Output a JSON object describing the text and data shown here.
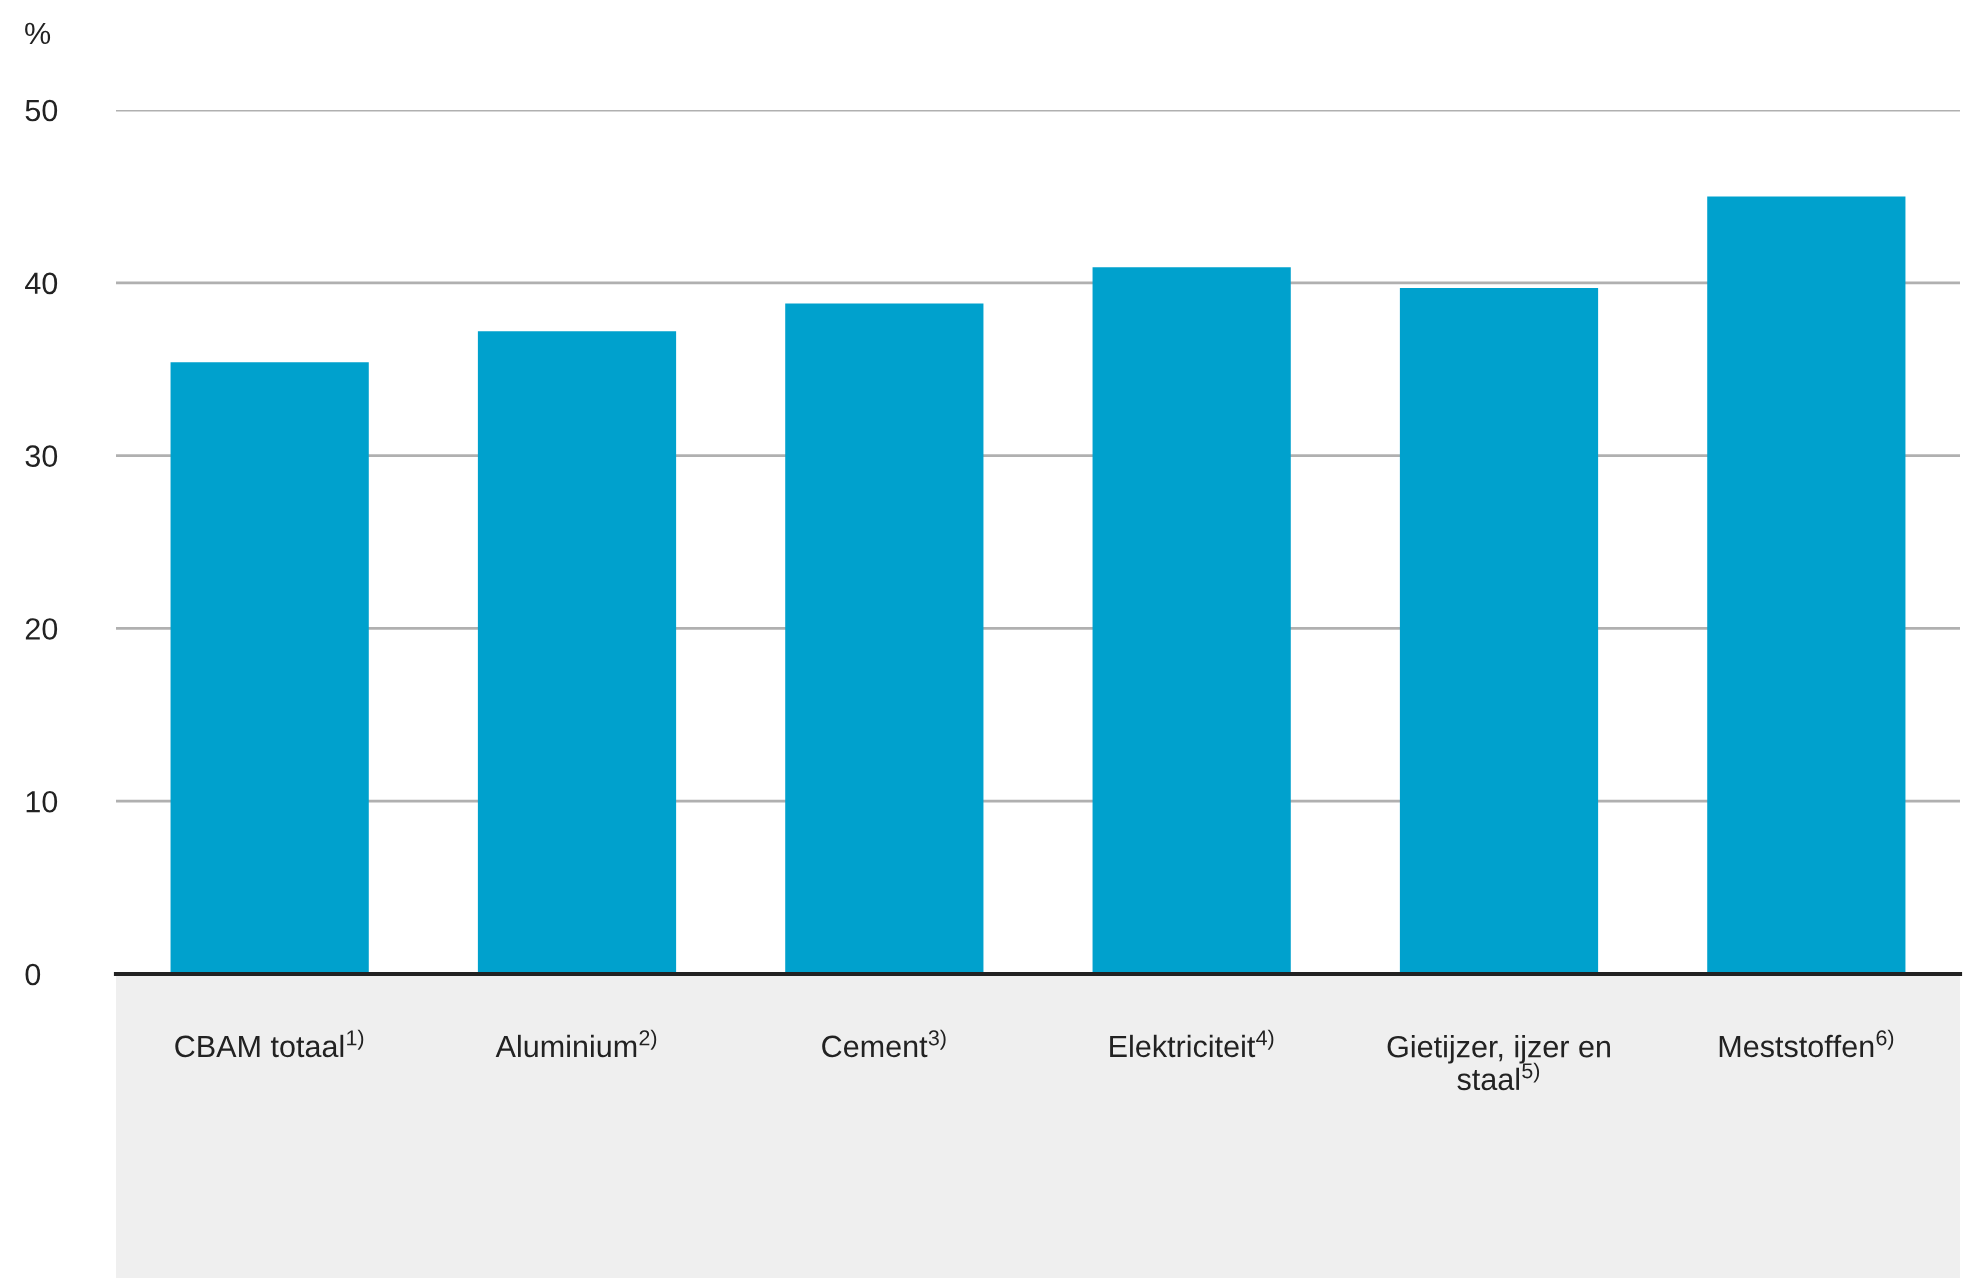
{
  "chart_data": {
    "type": "bar",
    "ylabel": "%",
    "categories": [
      "CBAM totaal$^{1)}$",
      "Aluminium$^{2)}$",
      "Cement$^{3)}$",
      "Elektriciteit$^{4)}$",
      "Gietijzer, ijzer en\nstaal$^{5)}$",
      "Meststoffen$^{6)}$"
    ],
    "values": [
      35.4,
      37.2,
      38.8,
      40.9,
      39.7,
      45.0
    ],
    "color": "#00a1cd",
    "ylim": [
      0,
      50
    ],
    "yticks": [
      0,
      10,
      20,
      30,
      40,
      50
    ],
    "grid": "y"
  }
}
